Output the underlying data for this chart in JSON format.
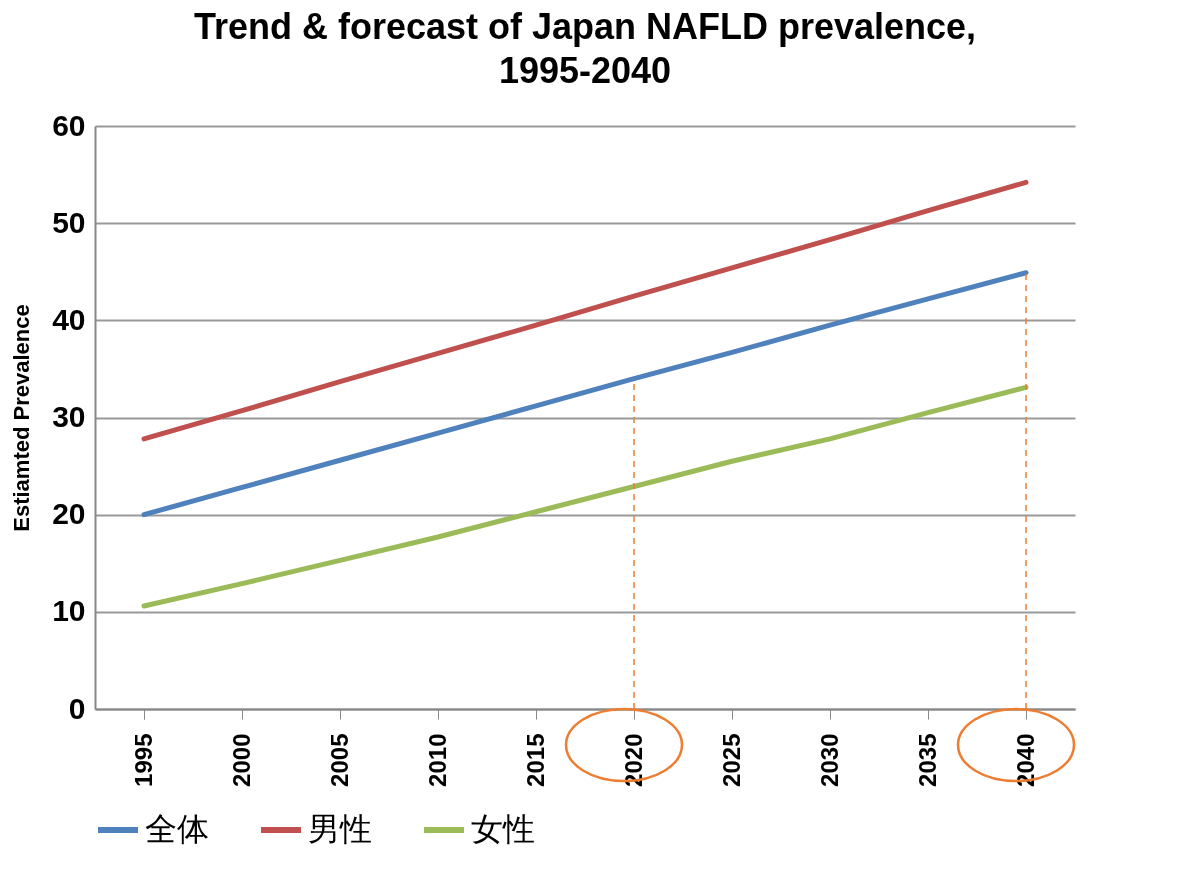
{
  "chart_data": {
    "type": "line",
    "title": "Trend & forecast of Japan NAFLD prevalence, 1995-2040",
    "ylabel": "Estiamted Prevalence",
    "categories": [
      "1995",
      "2000",
      "2005",
      "2010",
      "2015",
      "2020",
      "2025",
      "2030",
      "2035",
      "2040"
    ],
    "series": [
      {
        "name": "全体",
        "color": "#4f81bd",
        "values": [
          20.0,
          22.8,
          25.6,
          28.4,
          31.2,
          34.0,
          36.7,
          39.5,
          42.2,
          44.9
        ]
      },
      {
        "name": "男性",
        "color": "#c0504d",
        "values": [
          27.8,
          30.7,
          33.7,
          36.6,
          39.5,
          42.5,
          45.4,
          48.3,
          51.3,
          54.2
        ]
      },
      {
        "name": "女性",
        "color": "#9bbb59",
        "values": [
          10.6,
          12.9,
          15.3,
          17.7,
          20.3,
          22.9,
          25.5,
          27.8,
          30.5,
          33.1
        ]
      }
    ],
    "ylim": [
      0,
      60
    ],
    "yticks": [
      0,
      10,
      20,
      30,
      40,
      50,
      60
    ],
    "grid": "y",
    "legend": "bottom",
    "marker": "none",
    "line_style": "solid",
    "ref_lines": [
      {
        "axis": "x",
        "value": "2020",
        "color": "#ed7d31",
        "line_style": "dashed"
      },
      {
        "axis": "x",
        "value": "2040",
        "color": "#ed7d31",
        "line_style": "dashed"
      }
    ]
  }
}
